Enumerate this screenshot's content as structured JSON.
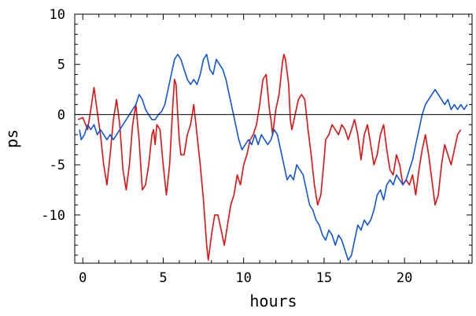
{
  "chart_data": {
    "type": "line",
    "title": "",
    "xlabel": "hours",
    "ylabel": "ps",
    "xlim": [
      -0.5,
      24.2
    ],
    "ylim": [
      -14.8,
      10
    ],
    "xticks": [
      0,
      5,
      10,
      15,
      20
    ],
    "yticks": [
      10,
      5,
      0,
      -5,
      -10
    ],
    "grid": false,
    "legend": "none",
    "zero_line": true,
    "series": [
      {
        "color": "#dd1111",
        "x": [
          -0.3,
          0.0,
          0.3,
          0.5,
          0.7,
          0.9,
          1.1,
          1.3,
          1.5,
          1.7,
          1.9,
          2.1,
          2.3,
          2.5,
          2.7,
          2.9,
          3.1,
          3.3,
          3.5,
          3.7,
          3.9,
          4.1,
          4.3,
          4.4,
          4.5,
          4.6,
          4.8,
          5.0,
          5.2,
          5.4,
          5.6,
          5.7,
          5.8,
          5.9,
          6.0,
          6.1,
          6.3,
          6.5,
          6.7,
          6.9,
          7.1,
          7.3,
          7.5,
          7.7,
          7.8,
          8.0,
          8.2,
          8.4,
          8.6,
          8.8,
          9.0,
          9.2,
          9.4,
          9.6,
          9.8,
          10.0,
          10.2,
          10.4,
          10.6,
          10.8,
          11.0,
          11.2,
          11.4,
          11.6,
          11.7,
          11.8,
          12.0,
          12.2,
          12.4,
          12.5,
          12.6,
          12.8,
          12.9,
          13.0,
          13.2,
          13.4,
          13.6,
          13.8,
          14.0,
          14.2,
          14.4,
          14.6,
          14.8,
          15.0,
          15.1,
          15.3,
          15.5,
          15.7,
          15.9,
          16.1,
          16.3,
          16.5,
          16.7,
          16.9,
          17.1,
          17.3,
          17.5,
          17.7,
          17.9,
          18.1,
          18.3,
          18.5,
          18.7,
          18.9,
          19.1,
          19.3,
          19.5,
          19.7,
          19.9,
          20.1,
          20.3,
          20.5,
          20.7,
          20.9,
          21.1,
          21.3,
          21.5,
          21.7,
          21.9,
          22.1,
          22.3,
          22.5,
          22.7,
          22.9,
          23.1,
          23.3,
          23.5
        ],
        "y": [
          -0.5,
          -0.3,
          -1.5,
          0.5,
          2.7,
          0.3,
          -2.0,
          -5.0,
          -7.0,
          -4.0,
          -0.5,
          1.5,
          -1.0,
          -5.5,
          -7.5,
          -5.0,
          -1.0,
          1.0,
          -2.5,
          -7.5,
          -7.0,
          -5.0,
          -2.0,
          -1.5,
          -3.0,
          -1.0,
          -1.5,
          -5.0,
          -8.0,
          -5.0,
          1.0,
          3.5,
          3.0,
          0.0,
          -2.5,
          -4.0,
          -4.0,
          -2.0,
          -1.0,
          1.0,
          -2.0,
          -5.0,
          -8.5,
          -13.0,
          -14.5,
          -12.0,
          -10.0,
          -10.0,
          -11.5,
          -13.0,
          -11.0,
          -9.0,
          -8.0,
          -6.0,
          -7.0,
          -5.0,
          -4.0,
          -2.5,
          -2.0,
          -1.0,
          1.0,
          3.5,
          4.0,
          0.5,
          -0.5,
          -2.0,
          0.5,
          2.0,
          5.0,
          6.0,
          5.5,
          3.0,
          -0.5,
          -1.5,
          0.0,
          1.5,
          2.0,
          1.5,
          -1.5,
          -4.0,
          -7.0,
          -9.0,
          -8.0,
          -4.5,
          -2.5,
          -2.0,
          -1.0,
          -1.5,
          -2.0,
          -1.0,
          -1.5,
          -2.5,
          -1.5,
          -0.5,
          -2.0,
          -4.5,
          -2.0,
          -1.0,
          -3.0,
          -5.0,
          -4.0,
          -2.0,
          -1.0,
          -3.5,
          -5.5,
          -6.0,
          -4.0,
          -5.0,
          -7.0,
          -6.5,
          -7.0,
          -6.0,
          -8.0,
          -5.5,
          -3.5,
          -2.0,
          -4.0,
          -6.5,
          -9.0,
          -8.0,
          -5.0,
          -3.0,
          -4.0,
          -5.0,
          -3.5,
          -2.0,
          -1.5
        ]
      },
      {
        "color": "#1155dd",
        "x": [
          -0.2,
          -0.1,
          0.1,
          0.3,
          0.5,
          0.7,
          0.9,
          1.1,
          1.3,
          1.5,
          1.7,
          1.9,
          2.1,
          2.3,
          2.5,
          2.7,
          2.9,
          3.1,
          3.3,
          3.5,
          3.7,
          3.9,
          4.1,
          4.3,
          4.5,
          4.7,
          4.9,
          5.1,
          5.3,
          5.5,
          5.7,
          5.9,
          6.1,
          6.3,
          6.5,
          6.7,
          6.9,
          7.1,
          7.3,
          7.5,
          7.7,
          7.9,
          8.1,
          8.3,
          8.5,
          8.7,
          8.9,
          9.1,
          9.3,
          9.5,
          9.7,
          9.9,
          10.1,
          10.3,
          10.5,
          10.7,
          10.9,
          11.1,
          11.3,
          11.5,
          11.7,
          11.9,
          12.1,
          12.3,
          12.5,
          12.7,
          12.9,
          13.1,
          13.3,
          13.5,
          13.7,
          13.9,
          14.1,
          14.3,
          14.5,
          14.7,
          14.9,
          15.1,
          15.3,
          15.5,
          15.7,
          15.9,
          16.1,
          16.3,
          16.5,
          16.7,
          16.9,
          17.1,
          17.3,
          17.5,
          17.7,
          17.9,
          18.1,
          18.3,
          18.5,
          18.7,
          18.9,
          19.1,
          19.3,
          19.5,
          19.7,
          19.9,
          20.1,
          20.3,
          20.5,
          20.7,
          20.9,
          21.1,
          21.3,
          21.5,
          21.7,
          21.9,
          22.1,
          22.3,
          22.5,
          22.7,
          22.9,
          23.1,
          23.3,
          23.5,
          23.7,
          23.9
        ],
        "y": [
          -1.5,
          -2.5,
          -2.0,
          -1.0,
          -1.5,
          -1.0,
          -2.0,
          -1.5,
          -2.0,
          -2.5,
          -2.0,
          -2.5,
          -2.0,
          -1.5,
          -1.0,
          -0.5,
          0.0,
          0.5,
          1.0,
          2.0,
          1.5,
          0.5,
          0.0,
          -0.5,
          -0.5,
          0.0,
          0.3,
          1.0,
          2.5,
          4.0,
          5.5,
          6.0,
          5.5,
          4.5,
          3.5,
          3.0,
          3.5,
          3.0,
          4.0,
          5.5,
          6.0,
          4.5,
          4.0,
          5.5,
          5.0,
          4.5,
          3.5,
          2.0,
          0.5,
          -1.0,
          -2.5,
          -3.5,
          -3.0,
          -2.5,
          -3.0,
          -2.0,
          -3.0,
          -2.0,
          -2.5,
          -3.0,
          -2.5,
          -1.5,
          -2.0,
          -3.5,
          -5.0,
          -6.5,
          -6.0,
          -6.5,
          -5.0,
          -5.5,
          -6.0,
          -7.5,
          -9.0,
          -9.5,
          -10.5,
          -11.0,
          -12.0,
          -12.5,
          -11.5,
          -12.0,
          -13.0,
          -12.0,
          -12.5,
          -13.5,
          -14.5,
          -14.0,
          -12.5,
          -11.0,
          -11.5,
          -10.5,
          -11.0,
          -10.5,
          -9.5,
          -8.0,
          -7.5,
          -8.5,
          -7.0,
          -6.5,
          -7.0,
          -6.0,
          -6.5,
          -7.0,
          -6.5,
          -5.5,
          -4.5,
          -3.0,
          -1.5,
          0.0,
          1.0,
          1.5,
          2.0,
          2.5,
          2.0,
          1.5,
          1.0,
          1.5,
          0.5,
          1.0,
          0.5,
          1.0,
          0.5,
          1.0
        ]
      }
    ]
  }
}
